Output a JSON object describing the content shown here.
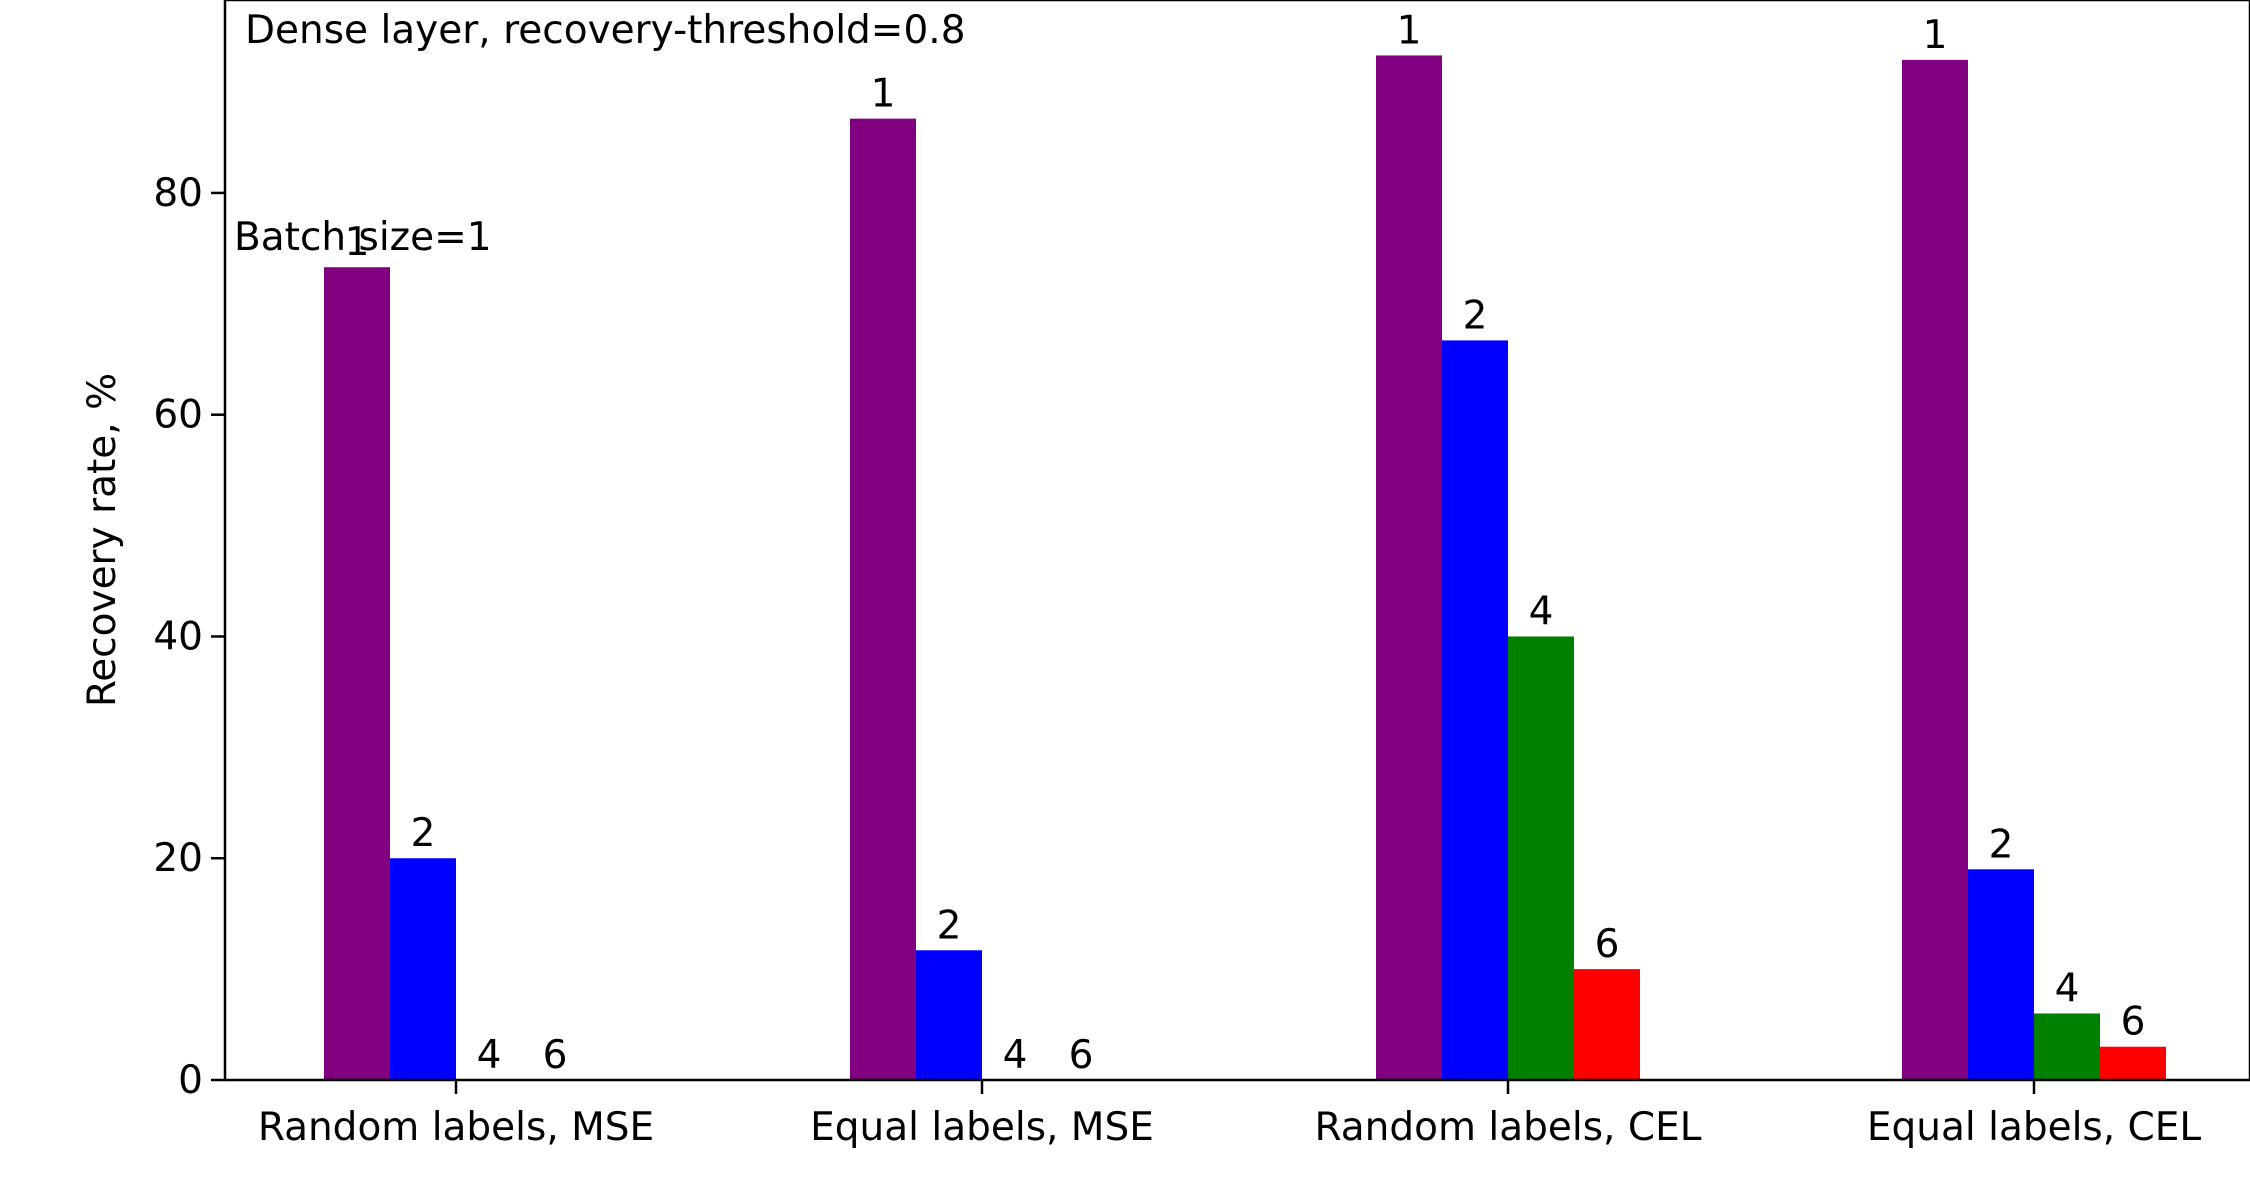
{
  "chart_data": {
    "type": "bar",
    "title": "",
    "annotation": "Dense layer, recovery-threshold=0.8",
    "batch_label": "Batch size=1",
    "xlabel": "",
    "ylabel": "Recovery rate, %",
    "categories": [
      "Random labels, MSE",
      "Equal labels, MSE",
      "Random labels, CEL",
      "Equal labels, CEL"
    ],
    "series": [
      {
        "label": "1",
        "color": "#800080",
        "values": [
          73.3,
          86.7,
          92.4,
          92.0
        ]
      },
      {
        "label": "2",
        "color": "#0000ff",
        "values": [
          20.0,
          11.7,
          66.7,
          19.0
        ]
      },
      {
        "label": "4",
        "color": "#008000",
        "values": [
          0,
          0,
          40.0,
          6.0
        ]
      },
      {
        "label": "6",
        "color": "#ff0000",
        "values": [
          0,
          0,
          10.0,
          3.0
        ]
      }
    ],
    "ylim": [
      0,
      97.4
    ],
    "yticks": [
      0,
      20,
      40,
      60,
      80
    ],
    "grid": false,
    "legend": "none"
  }
}
